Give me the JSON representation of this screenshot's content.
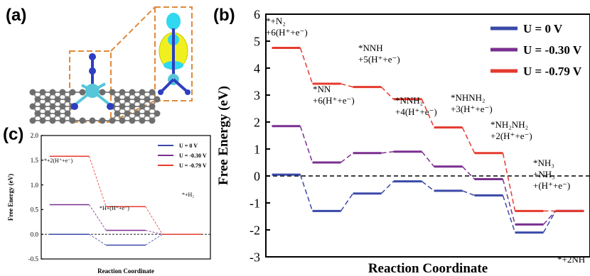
{
  "panels": {
    "a": "(a)",
    "b": "(b)",
    "c": "(c)"
  },
  "colors": {
    "u0": "#3a48a8",
    "u030": "#7a2f8f",
    "u079": "#e53a2e",
    "structure_carbon": "#6e6e6e",
    "structure_nitrogen": "#2d3fbf",
    "structure_metal": "#56c6d8",
    "density_yellow": "#f0f020",
    "density_cyan": "#30d8f0",
    "zoom_box": "#e08a3a"
  },
  "structure_icon": "single-atom-catalyst-with-n2-icon",
  "chart_data": [
    {
      "id": "b",
      "type": "line",
      "style": "free-energy-step-diagram",
      "xlabel": "Reaction Coordinate",
      "ylabel": "Free Energy (eV)",
      "ylim": [
        -3,
        6
      ],
      "yticks": [
        "6",
        "5",
        "4",
        "3",
        "2",
        "1",
        "0",
        "-1",
        "-2",
        "-3"
      ],
      "zero_line": "dashed",
      "legend_position": "top-right",
      "series": [
        {
          "name": "U = 0 V",
          "color": "#3a48a8",
          "values": [
            0.05,
            -1.3,
            -0.65,
            -0.2,
            -0.55,
            -0.72,
            -2.1,
            -1.3
          ]
        },
        {
          "name": "U = -0.30 V",
          "color": "#7a2f8f",
          "values": [
            1.85,
            0.5,
            0.85,
            0.9,
            0.35,
            -0.12,
            -1.8,
            -1.3
          ]
        },
        {
          "name": "U = -0.79 V",
          "color": "#e53a2e",
          "values": [
            4.75,
            3.42,
            3.3,
            2.85,
            1.8,
            0.85,
            -1.3,
            -1.3
          ]
        }
      ],
      "annotations": [
        {
          "step": 0,
          "lines": [
            "*+N₂",
            "+6(H⁺+e⁻)"
          ]
        },
        {
          "step": 1,
          "lines": [
            "*NN",
            "+6(H⁺+e⁻)"
          ]
        },
        {
          "step": 2,
          "lines": [
            "*NNH",
            "+5(H⁺+e⁻)"
          ]
        },
        {
          "step": 3,
          "lines": [
            "*NNH₂",
            "+4(H⁺+e⁻)"
          ]
        },
        {
          "step": 4,
          "lines": [
            "*NHNH₂",
            "+3(H⁺+e⁻)"
          ]
        },
        {
          "step": 5,
          "lines": [
            "*NH₂NH₂",
            "+2(H⁺+e⁻)"
          ]
        },
        {
          "step": 6,
          "lines": [
            "*NH₃",
            "+NH₃",
            "+(H⁺+e⁻)"
          ]
        },
        {
          "step": 7,
          "lines": [
            "*+2NH"
          ]
        }
      ]
    },
    {
      "id": "c",
      "type": "line",
      "style": "free-energy-step-diagram",
      "xlabel": "Reaction Coordinate",
      "ylabel": "Free Energy (eV)",
      "ylim": [
        -0.5,
        2.0
      ],
      "yticks": [
        "2.0",
        "1.5",
        "1.0",
        "0.5",
        "0.0",
        "-0.5"
      ],
      "zero_line": "dashed",
      "legend_position": "top-right",
      "series": [
        {
          "name": "U = 0 V",
          "color": "#3a48a8",
          "values": [
            0.0,
            -0.22,
            0.0
          ]
        },
        {
          "name": "U = -0.30 V",
          "color": "#7a2f8f",
          "values": [
            0.6,
            0.08,
            0.0
          ]
        },
        {
          "name": "U = -0.79 V",
          "color": "#e53a2e",
          "values": [
            1.58,
            0.56,
            0.0
          ]
        }
      ],
      "annotations": [
        {
          "step": 0,
          "lines": [
            "*+2(H⁺+e⁻)"
          ]
        },
        {
          "step": 1,
          "lines": [
            "*H+(H⁺+e⁻)"
          ]
        },
        {
          "step": 2,
          "lines": [
            "*+H₂"
          ]
        }
      ]
    }
  ]
}
